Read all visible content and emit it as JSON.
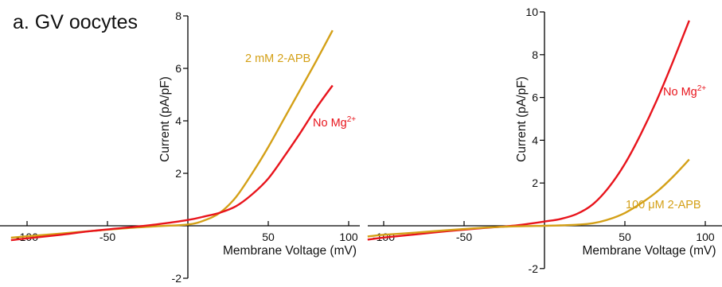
{
  "figure": {
    "panel_title": "a. GV oocytes"
  },
  "chart_data": [
    {
      "type": "line",
      "title": "",
      "xlabel": "Membrane Voltage (mV)",
      "ylabel": "Current (pA/pF)",
      "xlim": [
        -110,
        105
      ],
      "ylim": [
        -2,
        8
      ],
      "xticks": [
        -100,
        -50,
        50,
        100
      ],
      "xtick_labels": [
        "-100",
        "-50",
        "50",
        "100"
      ],
      "yticks": [
        -2,
        2,
        4,
        6,
        8
      ],
      "ytick_labels": [
        "-2",
        "2",
        "4",
        "6",
        "8"
      ],
      "grid": false,
      "series": [
        {
          "name": "2 mM 2-APB",
          "label_main": "2 mM 2-APB",
          "label_sup": "",
          "color": "#D4A017",
          "x": [
            -110,
            -100,
            -80,
            -60,
            -40,
            -20,
            0,
            10,
            20,
            30,
            40,
            50,
            60,
            70,
            80,
            90
          ],
          "y": [
            -0.45,
            -0.4,
            -0.3,
            -0.2,
            -0.1,
            -0.02,
            0.05,
            0.2,
            0.5,
            1.1,
            2.0,
            3.0,
            4.1,
            5.2,
            6.3,
            7.45
          ]
        },
        {
          "name": "No Mg2+",
          "label_main": "No Mg",
          "label_sup": "2+",
          "color": "#E8141C",
          "x": [
            -110,
            -100,
            -80,
            -60,
            -40,
            -20,
            0,
            10,
            20,
            30,
            40,
            50,
            60,
            70,
            80,
            90
          ],
          "y": [
            -0.55,
            -0.48,
            -0.35,
            -0.2,
            -0.08,
            0.05,
            0.22,
            0.35,
            0.5,
            0.75,
            1.2,
            1.8,
            2.65,
            3.55,
            4.5,
            5.35
          ]
        }
      ]
    },
    {
      "type": "line",
      "title": "",
      "xlabel": "Membrane Voltage (mV)",
      "ylabel": "Current (pA/pF)",
      "xlim": [
        -110,
        112
      ],
      "ylim": [
        -2,
        10
      ],
      "xticks": [
        -100,
        -50,
        50,
        100
      ],
      "xtick_labels": [
        "-100",
        "-50",
        "50",
        "100"
      ],
      "yticks": [
        -2,
        2,
        4,
        6,
        8,
        10
      ],
      "ytick_labels": [
        "-2",
        "2",
        "4",
        "6",
        "8",
        "10"
      ],
      "grid": false,
      "series": [
        {
          "name": "No Mg2+",
          "label_main": "No Mg",
          "label_sup": "2+",
          "color": "#E8141C",
          "x": [
            -110,
            -100,
            -80,
            -60,
            -40,
            -20,
            0,
            10,
            20,
            30,
            40,
            50,
            60,
            70,
            80,
            90
          ],
          "y": [
            -0.65,
            -0.55,
            -0.4,
            -0.25,
            -0.12,
            0.0,
            0.2,
            0.32,
            0.55,
            1.0,
            1.8,
            2.9,
            4.3,
            5.9,
            7.7,
            9.6
          ]
        },
        {
          "name": "100 μM 2-APB",
          "label_main": "100 μM 2-APB",
          "label_sup": "",
          "color": "#D4A017",
          "x": [
            -110,
            -100,
            -80,
            -60,
            -40,
            -20,
            0,
            10,
            20,
            30,
            40,
            50,
            60,
            70,
            80,
            90
          ],
          "y": [
            -0.5,
            -0.42,
            -0.32,
            -0.2,
            -0.1,
            -0.03,
            0.0,
            0.02,
            0.05,
            0.12,
            0.3,
            0.6,
            1.05,
            1.6,
            2.3,
            3.1
          ]
        }
      ]
    }
  ]
}
